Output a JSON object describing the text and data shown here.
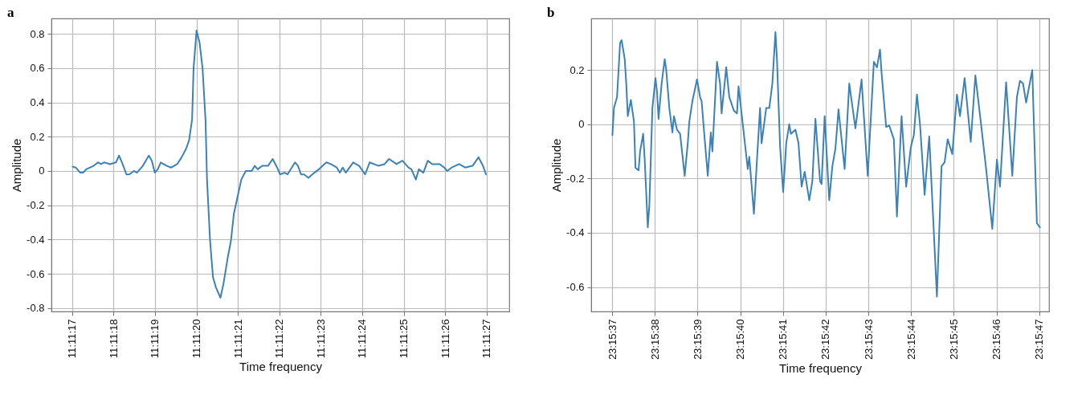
{
  "chart_data": [
    {
      "type": "line",
      "title": "a",
      "xlabel": "Time frequency",
      "ylabel": "Amplitude",
      "grid": true,
      "xlim": [
        11.187917,
        11.190986
      ],
      "ylim": [
        -0.82,
        0.89
      ],
      "xticks": [
        {
          "value": 11.188056,
          "label": "11:11:17"
        },
        {
          "value": 11.188333,
          "label": "11:11:18"
        },
        {
          "value": 11.188611,
          "label": "11:11:19"
        },
        {
          "value": 11.188889,
          "label": "11:11:20"
        },
        {
          "value": 11.189167,
          "label": "11:11:21"
        },
        {
          "value": 11.189444,
          "label": "11:11:22"
        },
        {
          "value": 11.189722,
          "label": "11:11:23"
        },
        {
          "value": 11.19,
          "label": "11:11:24"
        },
        {
          "value": 11.190278,
          "label": "11:11:25"
        },
        {
          "value": 11.190556,
          "label": "11:11:26"
        },
        {
          "value": 11.190833,
          "label": "11:11:27"
        }
      ],
      "yticks": [
        -0.8,
        -0.6,
        -0.4,
        -0.2,
        0,
        0.2,
        0.4,
        0.6,
        0.8
      ],
      "x": [
        11.18806,
        11.18808,
        11.18811,
        11.18813,
        11.18815,
        11.1882,
        11.18823,
        11.18825,
        11.18827,
        11.18831,
        11.18835,
        11.18837,
        11.18839,
        11.18842,
        11.18844,
        11.18847,
        11.18849,
        11.18853,
        11.18857,
        11.18859,
        11.18861,
        11.18863,
        11.18865,
        11.18869,
        11.18872,
        11.18876,
        11.18879,
        11.18882,
        11.18884,
        11.18886,
        11.18887,
        11.18889,
        11.18891,
        11.18893,
        11.18895,
        11.18896,
        11.18898,
        11.189,
        11.18902,
        11.18905,
        11.18907,
        11.1891,
        11.18912,
        11.18914,
        11.18916,
        11.18919,
        11.18922,
        11.18926,
        11.18928,
        11.1893,
        11.18933,
        11.18937,
        11.1894,
        11.18943,
        11.18945,
        11.18948,
        11.1895,
        11.18955,
        11.18957,
        11.18959,
        11.18961,
        11.18964,
        11.18968,
        11.18971,
        11.18976,
        11.18979,
        11.18983,
        11.18985,
        11.18987,
        11.18989,
        11.18994,
        11.18998,
        11.19002,
        11.19005,
        11.19011,
        11.19015,
        11.19018,
        11.19023,
        11.19027,
        11.19031,
        11.19033,
        11.19036,
        11.19038,
        11.19041,
        11.19044,
        11.19047,
        11.19052,
        11.19055,
        11.19057,
        11.1906,
        11.19065,
        11.19069,
        11.19074,
        11.19078,
        11.19081,
        11.19083
      ],
      "series": [
        {
          "color": "#3b82b8",
          "values": [
            0.025,
            0.02,
            -0.01,
            -0.01,
            0.01,
            0.03,
            0.05,
            0.04,
            0.05,
            0.04,
            0.05,
            0.09,
            0.05,
            -0.02,
            -0.02,
            0.0,
            -0.01,
            0.03,
            0.09,
            0.06,
            -0.01,
            0.01,
            0.05,
            0.03,
            0.02,
            0.04,
            0.08,
            0.13,
            0.18,
            0.3,
            0.6,
            0.82,
            0.75,
            0.6,
            0.3,
            -0.05,
            -0.4,
            -0.62,
            -0.68,
            -0.74,
            -0.66,
            -0.5,
            -0.41,
            -0.25,
            -0.17,
            -0.05,
            0.0,
            0.0,
            0.03,
            0.01,
            0.03,
            0.03,
            0.07,
            0.02,
            -0.02,
            -0.01,
            -0.02,
            0.05,
            0.03,
            -0.02,
            -0.02,
            -0.04,
            -0.01,
            0.01,
            0.05,
            0.04,
            0.02,
            -0.01,
            0.02,
            -0.01,
            0.05,
            0.03,
            -0.02,
            0.05,
            0.03,
            0.04,
            0.07,
            0.04,
            0.06,
            0.02,
            0.01,
            -0.05,
            0.01,
            -0.01,
            0.06,
            0.04,
            0.04,
            0.02,
            0.0,
            0.02,
            0.04,
            0.02,
            0.03,
            0.08,
            0.03,
            -0.02
          ]
        }
      ]
    },
    {
      "type": "line",
      "title": "b",
      "xlabel": "Time frequency",
      "ylabel": "Amplitude",
      "grid": true,
      "xlim": [
        23.260142,
        23.263119
      ],
      "ylim": [
        -0.69,
        0.39
      ],
      "xticks": [
        {
          "value": 23.260278,
          "label": "23:15:37"
        },
        {
          "value": 23.260556,
          "label": "23:15:38"
        },
        {
          "value": 23.260833,
          "label": "23:15:39"
        },
        {
          "value": 23.261111,
          "label": "23:15:40"
        },
        {
          "value": 23.261389,
          "label": "23:15:41"
        },
        {
          "value": 23.261667,
          "label": "23:15:42"
        },
        {
          "value": 23.261944,
          "label": "23:15:43"
        },
        {
          "value": 23.262222,
          "label": "23:15:44"
        },
        {
          "value": 23.2625,
          "label": "23:15:45"
        },
        {
          "value": 23.262778,
          "label": "23:15:46"
        },
        {
          "value": 23.263056,
          "label": "23:15:47"
        }
      ],
      "yticks": [
        -0.6,
        -0.4,
        -0.2,
        0,
        0.2
      ],
      "x": [
        23.26028,
        23.26029,
        23.26031,
        23.26033,
        23.26034,
        23.26036,
        23.26037,
        23.26038,
        23.2604,
        23.26042,
        23.26043,
        23.26045,
        23.26046,
        23.26048,
        23.26049,
        23.26051,
        23.26052,
        23.26054,
        23.26056,
        23.26057,
        23.26058,
        23.2606,
        23.26062,
        23.26063,
        23.26065,
        23.26067,
        23.26068,
        23.2607,
        23.26072,
        23.26075,
        23.26077,
        23.26078,
        23.2608,
        23.26083,
        23.26085,
        23.26086,
        23.26088,
        23.2609,
        23.26092,
        23.26093,
        23.26096,
        23.26098,
        23.26099,
        23.26102,
        23.26104,
        23.26107,
        23.26109,
        23.2611,
        23.26112,
        23.26116,
        23.26117,
        23.2612,
        23.26122,
        23.26124,
        23.26125,
        23.26128,
        23.2613,
        23.26132,
        23.26134,
        23.26135,
        23.26137,
        23.26139,
        23.2614,
        23.26141,
        23.26143,
        23.26144,
        23.26147,
        23.26149,
        23.26151,
        23.26153,
        23.26156,
        23.26158,
        23.2616,
        23.26163,
        23.26164,
        23.26166,
        23.26169,
        23.26171,
        23.26173,
        23.26175,
        23.26179,
        23.26182,
        23.26186,
        23.2619,
        23.26194,
        23.26198,
        23.262,
        23.26202,
        23.26203,
        23.26206,
        23.26208,
        23.26211,
        23.26213,
        23.26216,
        23.26219,
        23.26222,
        23.26224,
        23.26226,
        23.26228,
        23.26231,
        23.26234,
        23.26239,
        23.26242,
        23.26244,
        23.26246,
        23.26249,
        23.26252,
        23.26254,
        23.26257,
        23.26261,
        23.26264,
        23.26268,
        23.26271,
        23.26275,
        23.26278,
        23.2628,
        23.26284,
        23.26288,
        23.26291,
        23.26293,
        23.26295,
        23.26297,
        23.26301,
        23.26304,
        23.26306
      ],
      "series": [
        {
          "color": "#3b82b8",
          "values": [
            -0.04,
            0.06,
            0.1,
            0.3,
            0.31,
            0.24,
            0.15,
            0.03,
            0.09,
            0.01,
            -0.16,
            -0.17,
            -0.1,
            -0.035,
            -0.13,
            -0.38,
            -0.3,
            0.06,
            0.17,
            0.12,
            0.02,
            0.15,
            0.24,
            0.2,
            0.06,
            -0.03,
            0.03,
            -0.02,
            -0.035,
            -0.19,
            -0.07,
            0.01,
            0.085,
            0.165,
            0.1,
            0.085,
            -0.055,
            -0.19,
            -0.03,
            -0.1,
            0.23,
            0.15,
            0.04,
            0.21,
            0.1,
            0.05,
            0.04,
            0.14,
            0.04,
            -0.165,
            -0.12,
            -0.33,
            -0.13,
            0.06,
            -0.07,
            0.06,
            0.06,
            0.15,
            0.34,
            0.24,
            -0.08,
            -0.25,
            -0.165,
            -0.07,
            0.0,
            -0.035,
            -0.02,
            -0.07,
            -0.23,
            -0.175,
            -0.28,
            -0.21,
            0.02,
            -0.21,
            -0.22,
            0.03,
            -0.28,
            -0.155,
            -0.09,
            0.055,
            -0.165,
            0.15,
            -0.015,
            0.165,
            -0.19,
            0.23,
            0.21,
            0.275,
            0.19,
            -0.01,
            -0.005,
            -0.055,
            -0.34,
            0.03,
            -0.23,
            -0.085,
            -0.04,
            0.11,
            0.0,
            -0.26,
            -0.045,
            -0.635,
            -0.155,
            -0.14,
            -0.055,
            -0.11,
            0.11,
            0.03,
            0.17,
            -0.065,
            0.18,
            -0.015,
            -0.165,
            -0.385,
            -0.13,
            -0.23,
            0.155,
            -0.19,
            0.1,
            0.16,
            0.15,
            0.08,
            0.2,
            -0.365,
            -0.38
          ]
        }
      ]
    }
  ]
}
